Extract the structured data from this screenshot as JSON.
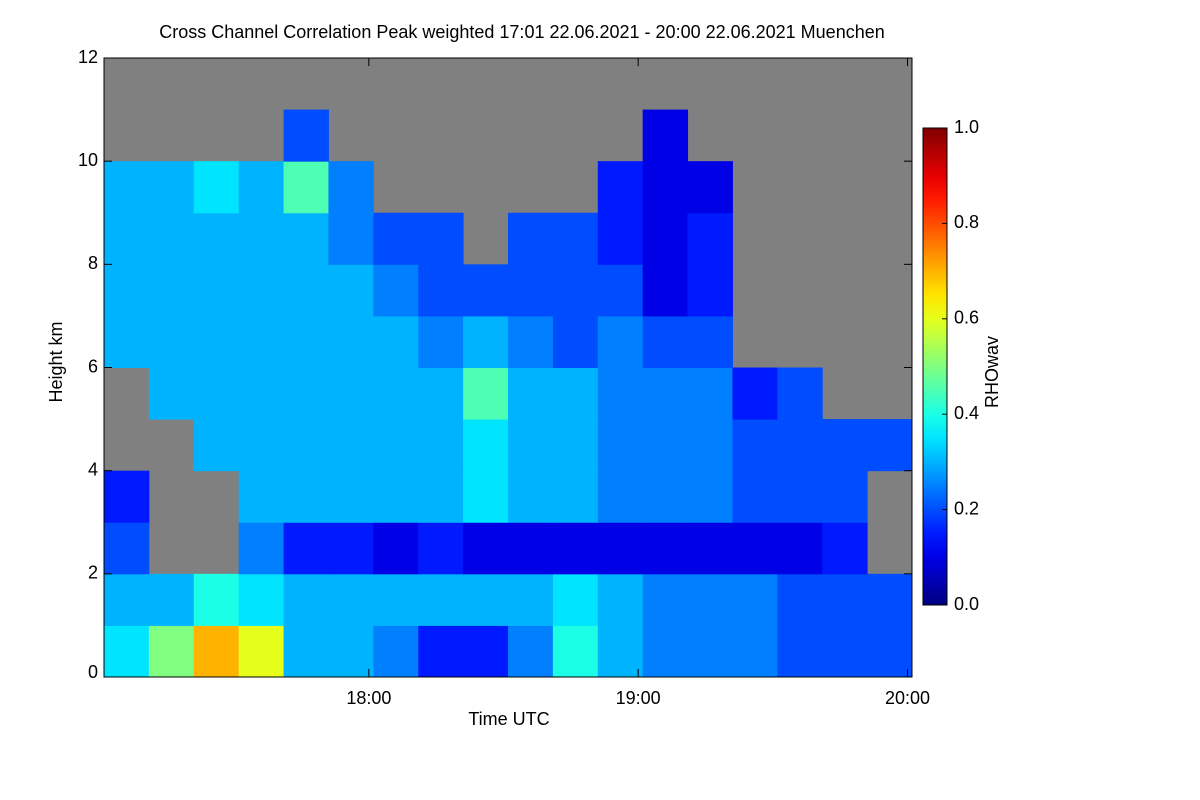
{
  "chart_data": {
    "type": "heatmap",
    "title": "Cross Channel Correlation Peak weighted   17:01 22.06.2021 - 20:00 22.06.2021 Muenchen",
    "x_label": "Time UTC",
    "y_label": "Height km",
    "colorbar_label": "RHOwav",
    "colormap": "jet",
    "missing_color": "#808080",
    "x": [
      1026,
      1036,
      1046,
      1056,
      1066,
      1076,
      1086,
      1096,
      1106,
      1116,
      1126,
      1136,
      1146,
      1156,
      1166,
      1176,
      1186,
      1196
    ],
    "y": [
      0.5,
      1.5,
      2.5,
      3.5,
      4.5,
      5.5,
      6.5,
      7.5,
      8.5,
      9.5,
      10.5,
      11.5
    ],
    "values": [
      [
        0.35,
        0.5,
        0.7,
        0.6,
        0.3,
        0.3,
        0.25,
        0.15,
        0.15,
        0.25,
        0.4,
        0.3,
        0.25,
        0.25,
        0.25,
        0.2,
        0.2,
        0.2
      ],
      [
        0.3,
        0.3,
        0.4,
        0.35,
        0.3,
        0.3,
        0.3,
        0.3,
        0.3,
        0.3,
        0.35,
        0.3,
        0.25,
        0.25,
        0.25,
        0.2,
        0.2,
        0.2
      ],
      [
        0.2,
        null,
        null,
        0.25,
        0.15,
        0.15,
        0.1,
        0.15,
        0.1,
        0.1,
        0.1,
        0.1,
        0.1,
        0.1,
        0.1,
        0.1,
        0.15,
        null
      ],
      [
        0.15,
        null,
        null,
        0.3,
        0.3,
        0.3,
        0.3,
        0.3,
        0.35,
        0.3,
        0.3,
        0.25,
        0.25,
        0.25,
        0.2,
        0.2,
        0.2,
        null
      ],
      [
        null,
        null,
        0.3,
        0.3,
        0.3,
        0.3,
        0.3,
        0.3,
        0.35,
        0.3,
        0.3,
        0.25,
        0.25,
        0.25,
        0.2,
        0.2,
        0.2,
        0.2
      ],
      [
        null,
        0.3,
        0.3,
        0.3,
        0.3,
        0.3,
        0.3,
        0.3,
        0.45,
        0.3,
        0.3,
        0.25,
        0.25,
        0.25,
        0.15,
        0.2,
        null,
        null
      ],
      [
        0.3,
        0.3,
        0.3,
        0.3,
        0.3,
        0.3,
        0.3,
        0.25,
        0.3,
        0.25,
        0.2,
        0.25,
        0.2,
        0.2,
        null,
        null,
        null,
        null
      ],
      [
        0.3,
        0.3,
        0.3,
        0.3,
        0.3,
        0.3,
        0.25,
        0.2,
        0.2,
        0.2,
        0.2,
        0.2,
        0.1,
        0.15,
        null,
        null,
        null,
        null
      ],
      [
        0.3,
        0.3,
        0.3,
        0.3,
        0.3,
        0.25,
        0.2,
        0.2,
        null,
        0.2,
        0.2,
        0.15,
        0.1,
        0.15,
        null,
        null,
        null,
        null
      ],
      [
        0.3,
        0.3,
        0.35,
        0.3,
        0.45,
        0.25,
        null,
        null,
        null,
        null,
        null,
        0.15,
        0.1,
        0.1,
        null,
        null,
        null,
        null
      ],
      [
        null,
        null,
        null,
        null,
        0.2,
        null,
        null,
        null,
        null,
        null,
        null,
        null,
        0.1,
        null,
        null,
        null,
        null,
        null
      ],
      [
        null,
        null,
        null,
        null,
        null,
        null,
        null,
        null,
        null,
        null,
        null,
        null,
        null,
        null,
        null,
        null,
        null,
        null
      ]
    ],
    "xlim": [
      1021,
      1201
    ],
    "xticks": [
      {
        "value": 1080,
        "label": "18:00"
      },
      {
        "value": 1140,
        "label": "19:00"
      },
      {
        "value": 1200,
        "label": "20:00"
      }
    ],
    "ylim": [
      0,
      12
    ],
    "yticks": [
      0,
      2,
      4,
      6,
      8,
      10,
      12
    ],
    "clim": [
      0,
      1
    ],
    "cticks": [
      {
        "value": 0,
        "label": "0.0"
      },
      {
        "value": 0.2,
        "label": "0.2"
      },
      {
        "value": 0.4,
        "label": "0.4"
      },
      {
        "value": 0.6,
        "label": "0.6"
      },
      {
        "value": 0.8,
        "label": "0.8"
      },
      {
        "value": 1,
        "label": "1.0"
      }
    ]
  }
}
